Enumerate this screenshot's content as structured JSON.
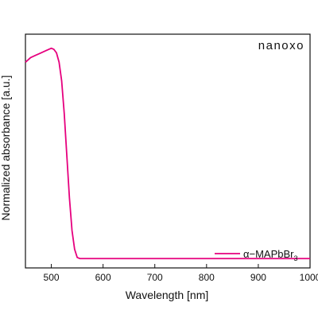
{
  "chart_data": {
    "type": "line",
    "title": "",
    "brand": "nanoxo",
    "xlabel": "Wavelength [nm]",
    "ylabel": "Normalized absorbance [a.u.]",
    "xlim": [
      450,
      1000
    ],
    "xticks": [
      500,
      600,
      700,
      800,
      900,
      1000
    ],
    "ylim": [
      0,
      1.0
    ],
    "y_tick_labels_visible": false,
    "grid": false,
    "legend_position": "bottom-right",
    "series": [
      {
        "name": "α−MAPbBr3",
        "legend_main": "α−MAPbBr",
        "legend_sub": "3",
        "color": "#e6007e",
        "x": [
          450,
          460,
          470,
          480,
          490,
          500,
          505,
          510,
          515,
          520,
          525,
          530,
          535,
          540,
          545,
          550,
          555,
          560,
          570,
          600,
          700,
          800,
          900,
          1000
        ],
        "y": [
          0.88,
          0.9,
          0.91,
          0.92,
          0.93,
          0.94,
          0.935,
          0.92,
          0.88,
          0.8,
          0.66,
          0.48,
          0.3,
          0.16,
          0.08,
          0.045,
          0.04,
          0.04,
          0.04,
          0.04,
          0.04,
          0.04,
          0.04,
          0.04
        ]
      }
    ]
  }
}
